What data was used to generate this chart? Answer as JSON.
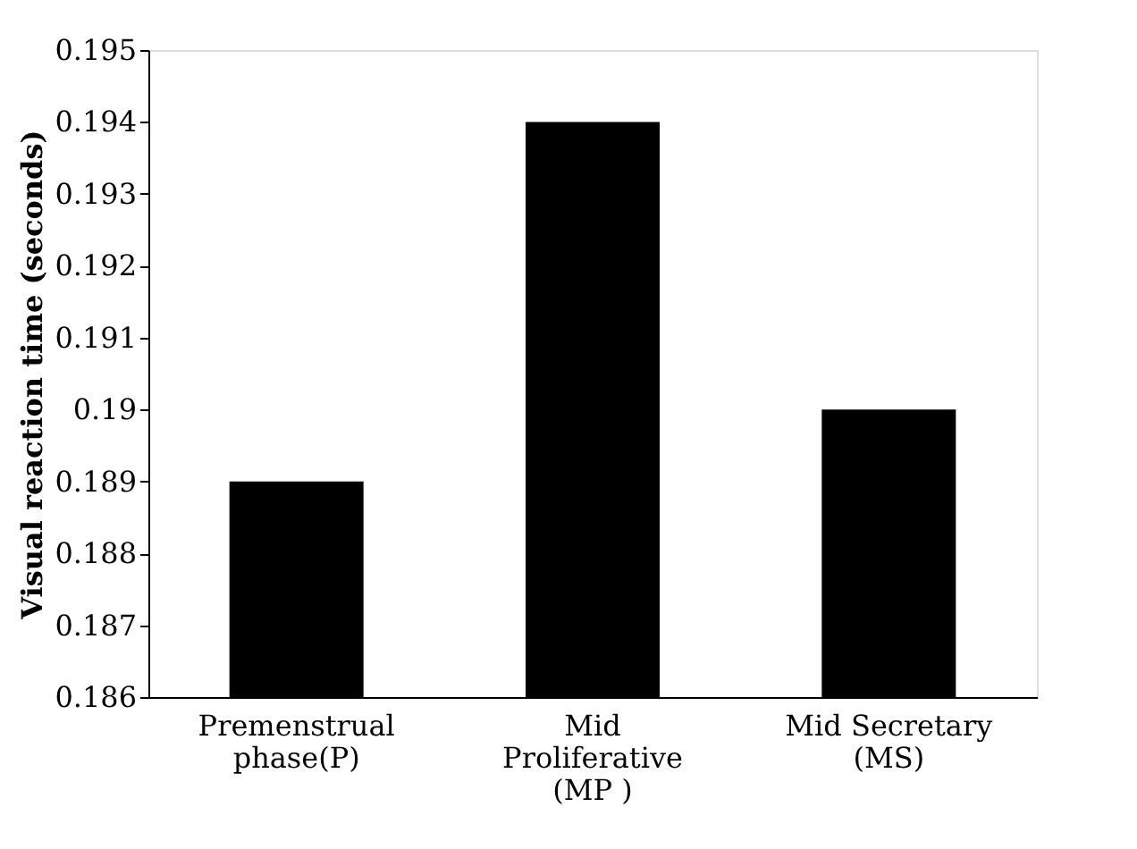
{
  "chart_data": {
    "type": "bar",
    "ylabel": "Visual reaction time (seconds)",
    "categories": [
      "Premenstrual\nphase(P)",
      "Mid\nProliferative\n(MP )",
      "Mid Secretary\n(MS)"
    ],
    "values": [
      0.189,
      0.194,
      0.19
    ],
    "color": "#000000",
    "ylim": [
      0.186,
      0.195
    ],
    "yticks": [
      0.186,
      0.187,
      0.188,
      0.189,
      0.19,
      0.191,
      0.192,
      0.193,
      0.194,
      0.195
    ],
    "grid": false
  }
}
